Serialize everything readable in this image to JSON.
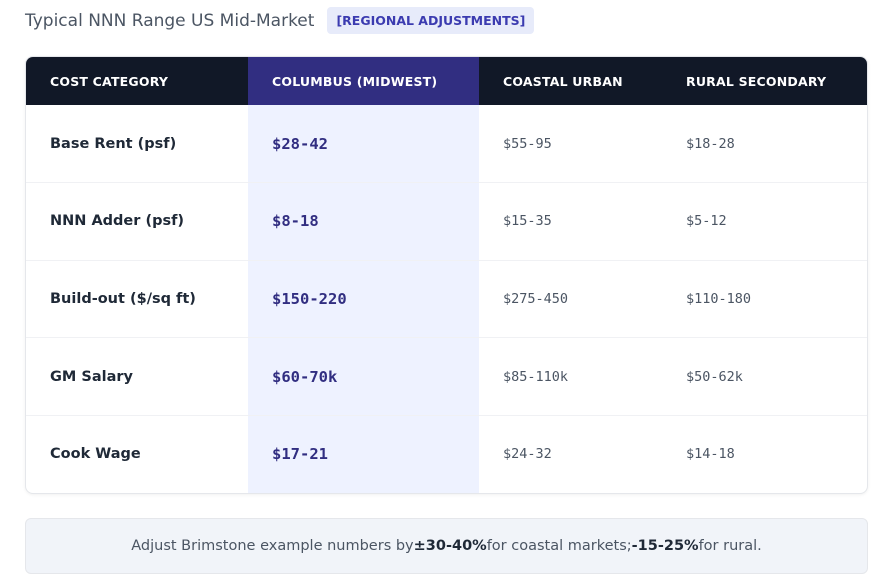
{
  "header": {
    "title": "Typical NNN Range US Mid-Market",
    "badge": "[REGIONAL ADJUSTMENTS]"
  },
  "table": {
    "columns": [
      "COST CATEGORY",
      "COLUMBUS (MIDWEST)",
      "COASTAL URBAN",
      "RURAL SECONDARY"
    ],
    "rows": [
      {
        "category": "Base Rent (psf)",
        "columbus": "$28-42",
        "coastal": "$55-95",
        "rural": "$18-28"
      },
      {
        "category": "NNN Adder (psf)",
        "columbus": "$8-18",
        "coastal": "$15-35",
        "rural": "$5-12"
      },
      {
        "category": "Build-out ($/sq ft)",
        "columbus": "$150-220",
        "coastal": "$275-450",
        "rural": "$110-180"
      },
      {
        "category": "GM Salary",
        "columbus": "$60-70k",
        "coastal": "$85-110k",
        "rural": "$50-62k"
      },
      {
        "category": "Cook Wage",
        "columbus": "$17-21",
        "coastal": "$24-32",
        "rural": "$14-18"
      }
    ]
  },
  "note": {
    "prefix": "Adjust Brimstone example numbers by ",
    "coastal_pct": "±30-40%",
    "middle": " for coastal markets; ",
    "rural_pct": "-15-25%",
    "suffix": " for rural."
  },
  "colors": {
    "header_bg": "#111827",
    "highlight_header": "#312e81",
    "highlight_cell": "#eef2ff",
    "badge_bg": "#e7ebfa"
  }
}
